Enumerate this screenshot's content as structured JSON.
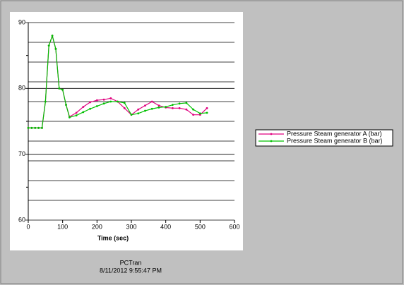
{
  "chart_data": {
    "type": "line",
    "x_label": "Time (sec)",
    "footer": [
      "PCTran",
      "8/11/2012 9:55:47 PM"
    ],
    "x": [
      0,
      10,
      20,
      30,
      40,
      50,
      60,
      70,
      80,
      90,
      100,
      110,
      120,
      140,
      160,
      180,
      200,
      220,
      240,
      260,
      280,
      300,
      320,
      340,
      360,
      380,
      400,
      420,
      440,
      460,
      480,
      500,
      520
    ],
    "series": [
      {
        "name": "Pressure Steam generator A (bar)",
        "color": "#e0007f",
        "values": [
          74,
          74,
          74,
          74,
          74,
          78,
          86.5,
          88,
          86,
          80,
          79.8,
          77.5,
          75.7,
          76.3,
          77.2,
          77.9,
          78.2,
          78.3,
          78.5,
          78,
          77,
          76,
          76.8,
          77.4,
          78,
          77.4,
          77.1,
          77,
          77,
          76.8,
          76,
          76,
          77
        ]
      },
      {
        "name": "Pressure Steam generator B (bar)",
        "color": "#00c000",
        "values": [
          74,
          74,
          74,
          74,
          74,
          78,
          86.5,
          88,
          86,
          80,
          79.8,
          77.5,
          75.6,
          75.9,
          76.4,
          76.9,
          77.3,
          77.7,
          78,
          78,
          77.8,
          76,
          76.2,
          76.6,
          76.9,
          77.1,
          77.2,
          77.5,
          77.7,
          77.8,
          76.8,
          76.2,
          76.3
        ]
      }
    ],
    "xlim": [
      0,
      600
    ],
    "xticks": [
      0,
      100,
      200,
      300,
      400,
      500,
      600
    ],
    "ylim": [
      60,
      90
    ],
    "yticks": [
      60,
      70,
      80,
      90
    ],
    "ygrid": [
      63,
      66,
      69,
      72,
      75,
      78,
      81,
      84,
      87
    ],
    "yminorticks": [
      65,
      75,
      85
    ],
    "grid": true
  }
}
